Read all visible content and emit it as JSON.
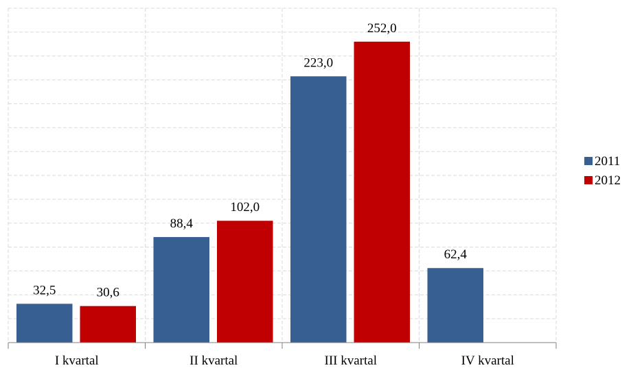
{
  "chart_data": {
    "type": "bar",
    "title": "",
    "xlabel": "",
    "ylabel": "",
    "categories": [
      "I kvartal",
      "II kvartal",
      "III kvartal",
      "IV kvartal"
    ],
    "series": [
      {
        "name": "2011",
        "color": "#375f91",
        "values": [
          32.5,
          88.4,
          223.0,
          62.4
        ],
        "labels": [
          "32,5",
          "88,4",
          "223,0",
          "62,4"
        ]
      },
      {
        "name": "2012",
        "color": "#c00000",
        "values": [
          30.6,
          102.0,
          252.0,
          null
        ],
        "labels": [
          "30,6",
          "102,0",
          "252,0",
          ""
        ]
      }
    ],
    "ylim": [
      0,
      280
    ],
    "grid": true,
    "legend": "right"
  }
}
